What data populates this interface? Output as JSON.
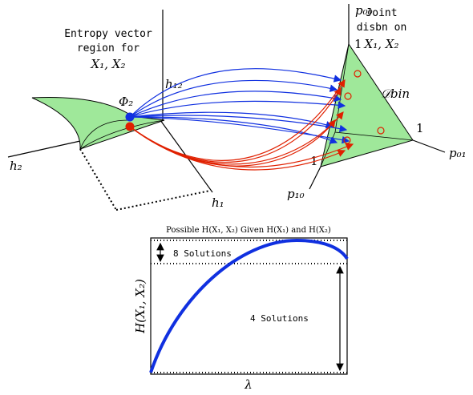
{
  "left_panel": {
    "title_line1": "Entropy vector",
    "title_line2": "region for",
    "title_line3": "X₁, X₂",
    "point_label": "Φ₂",
    "axis_h12": "h₁₂",
    "axis_h2": "h₂",
    "axis_h1": "h₁"
  },
  "right_panel": {
    "title_line1": "Joint",
    "title_line2": "disbn on",
    "title_line3": "X₁, X₂",
    "axis_p00": "p₀₀",
    "axis_p01": "p₀₁",
    "axis_p10": "p₁₀",
    "vertex_top": "1",
    "vertex_right": "1",
    "vertex_left": "1",
    "region_label": "𝒟bin"
  },
  "bottom_plot": {
    "title": "Possible H(X₁, X₂) Given H(X₁) and H(X₂)",
    "label_top": "8 Solutions",
    "label_bottom": "4 Solutions",
    "y_label": "H(X₁, X₂)",
    "x_label": "λ"
  }
}
